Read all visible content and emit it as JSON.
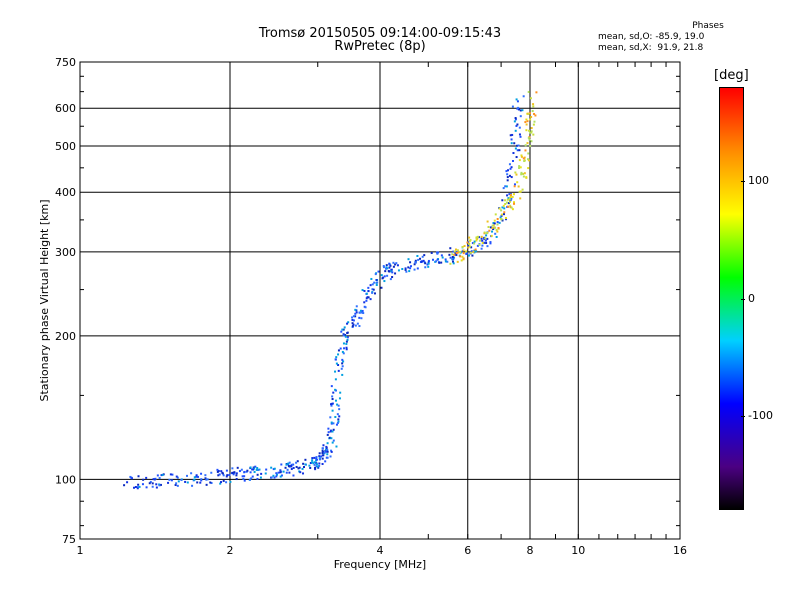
{
  "titles": {
    "line1": "Tromsø 20150505 09:14:00-09:15:43",
    "line2": "RwPretec (8p)"
  },
  "stats": {
    "heading": "Phases",
    "line_o": "mean, sd,O: -85.9, 19.0",
    "line_x": "mean, sd,X:  91.9, 21.8"
  },
  "colorbar": {
    "unit": "[deg]",
    "ticks": [
      {
        "label": "100",
        "value": 100
      },
      {
        "label": "0",
        "value": 0
      },
      {
        "label": "-100",
        "value": -100
      }
    ],
    "range": [
      -180,
      180
    ]
  },
  "chart_data": {
    "type": "scatter",
    "title": "Tromsø 20150505 09:14:00-09:15:43",
    "subtitle": "RwPretec (8p)",
    "xlabel": "Frequency [MHz]",
    "ylabel": "Stationary phase Virtual Height [km]",
    "x_scale": "log",
    "y_scale": "log",
    "xlim": [
      1,
      16
    ],
    "ylim": [
      75,
      750
    ],
    "x_ticks": [
      1,
      2,
      4,
      6,
      8,
      10,
      16
    ],
    "x_tick_labels": [
      "1",
      "2",
      "4",
      "6",
      "8",
      "10",
      "16"
    ],
    "y_ticks": [
      75,
      100,
      200,
      300,
      400,
      500,
      600,
      750
    ],
    "y_tick_labels": [
      "75",
      "100",
      "200",
      "300",
      "400",
      "500",
      "600",
      "750"
    ],
    "grid": true,
    "series": [
      {
        "name": "O",
        "color": "#1a3fe0",
        "phase_mean": -85.9,
        "trace": [
          [
            1.25,
            99
          ],
          [
            1.4,
            99
          ],
          [
            1.6,
            100
          ],
          [
            1.8,
            100
          ],
          [
            2.0,
            102
          ],
          [
            2.2,
            103
          ],
          [
            2.4,
            104
          ],
          [
            2.6,
            105
          ],
          [
            2.8,
            106
          ],
          [
            3.0,
            108
          ],
          [
            3.1,
            112
          ],
          [
            3.2,
            120
          ],
          [
            3.25,
            140
          ],
          [
            3.3,
            170
          ],
          [
            3.4,
            200
          ],
          [
            3.6,
            220
          ],
          [
            3.8,
            245
          ],
          [
            4.0,
            265
          ],
          [
            4.2,
            275
          ],
          [
            4.6,
            282
          ],
          [
            5.0,
            288
          ],
          [
            5.5,
            293
          ],
          [
            6.0,
            300
          ],
          [
            6.5,
            315
          ],
          [
            7.0,
            350
          ],
          [
            7.3,
            420
          ],
          [
            7.5,
            520
          ],
          [
            7.6,
            640
          ]
        ]
      },
      {
        "name": "X",
        "color": "#e6d21e",
        "phase_mean": 91.9,
        "trace": [
          [
            5.6,
            292
          ],
          [
            6.0,
            305
          ],
          [
            6.5,
            325
          ],
          [
            7.0,
            355
          ],
          [
            7.5,
            400
          ],
          [
            7.8,
            460
          ],
          [
            8.0,
            540
          ],
          [
            8.1,
            640
          ]
        ]
      }
    ]
  }
}
